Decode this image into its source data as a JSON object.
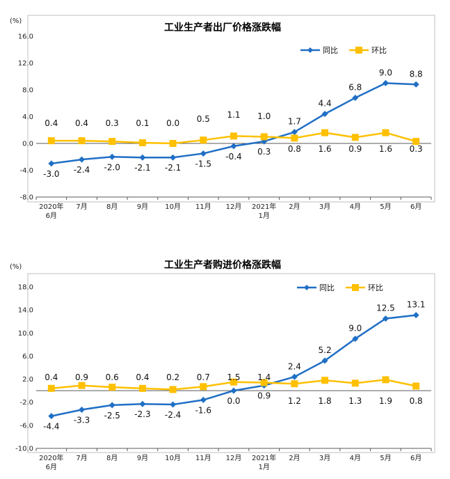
{
  "colors": {
    "yoy": "#1F6FC5",
    "mom": "#FFC000",
    "grid": "#d9d9d9",
    "axis": "#bfbfbf"
  },
  "chart_data": [
    {
      "type": "line",
      "title": "工业生产者出厂价格涨跌幅",
      "ylabel": "(%)",
      "ylim": [
        -8.0,
        16.0
      ],
      "yticks": [
        "16.0",
        "12.0",
        "8.0",
        "4.0",
        "0.0",
        "-4.0",
        "-8.0"
      ],
      "ytick_values": [
        16,
        12,
        8,
        4,
        0,
        -4,
        -8
      ],
      "categories": [
        "2020年6月",
        "7月",
        "8月",
        "9月",
        "10月",
        "11月",
        "12月",
        "2021年1月",
        "2月",
        "3月",
        "4月",
        "5月",
        "6月"
      ],
      "category_lines": [
        [
          "2020年",
          "6月"
        ],
        [
          "7月"
        ],
        [
          "8月"
        ],
        [
          "9月"
        ],
        [
          "10月"
        ],
        [
          "11月"
        ],
        [
          "12月"
        ],
        [
          "2021年",
          "1月"
        ],
        [
          "2月"
        ],
        [
          "3月"
        ],
        [
          "4月"
        ],
        [
          "5月"
        ],
        [
          "6月"
        ]
      ],
      "legend": [
        "同比",
        "环比"
      ],
      "series": [
        {
          "name": "同比",
          "values": [
            -3.0,
            -2.4,
            -2.0,
            -2.1,
            -2.1,
            -1.5,
            -0.4,
            0.3,
            1.7,
            4.4,
            6.8,
            9.0,
            8.8
          ],
          "labels": [
            "-3.0",
            "-2.4",
            "-2.0",
            "-2.1",
            "-2.1",
            "-1.5",
            "-0.4",
            "0.3",
            "1.7",
            "4.4",
            "6.8",
            "9.0",
            "8.8"
          ]
        },
        {
          "name": "环比",
          "values": [
            0.4,
            0.4,
            0.3,
            0.1,
            0.0,
            0.5,
            1.1,
            1.0,
            0.8,
            1.6,
            0.9,
            1.6,
            0.3
          ],
          "labels": [
            "0.4",
            "0.4",
            "0.3",
            "0.1",
            "0.0",
            "0.5",
            "1.1",
            "1.0",
            "0.8",
            "1.6",
            "0.9",
            "1.6",
            "0.3"
          ]
        }
      ]
    },
    {
      "type": "line",
      "title": "工业生产者购进价格涨跌幅",
      "ylabel": "(%)",
      "ylim": [
        -10.0,
        18.0
      ],
      "yticks": [
        "18.0",
        "14.0",
        "10.0",
        "6.0",
        "2.0",
        "-2.0",
        "-6.0",
        "-10.0"
      ],
      "ytick_values": [
        18,
        14,
        10,
        6,
        2,
        -2,
        -6,
        -10
      ],
      "categories": [
        "2020年6月",
        "7月",
        "8月",
        "9月",
        "10月",
        "11月",
        "12月",
        "2021年1月",
        "2月",
        "3月",
        "4月",
        "5月",
        "6月"
      ],
      "category_lines": [
        [
          "2020年",
          "6月"
        ],
        [
          "7月"
        ],
        [
          "8月"
        ],
        [
          "9月"
        ],
        [
          "10月"
        ],
        [
          "11月"
        ],
        [
          "12月"
        ],
        [
          "2021年",
          "1月"
        ],
        [
          "2月"
        ],
        [
          "3月"
        ],
        [
          "4月"
        ],
        [
          "5月"
        ],
        [
          "6月"
        ]
      ],
      "legend": [
        "同比",
        "环比"
      ],
      "series": [
        {
          "name": "同比",
          "values": [
            -4.4,
            -3.3,
            -2.5,
            -2.3,
            -2.4,
            -1.6,
            0.0,
            0.9,
            2.4,
            5.2,
            9.0,
            12.5,
            13.1
          ],
          "labels": [
            "-4.4",
            "-3.3",
            "-2.5",
            "-2.3",
            "-2.4",
            "-1.6",
            "0.0",
            "0.9",
            "2.4",
            "5.2",
            "9.0",
            "12.5",
            "13.1"
          ]
        },
        {
          "name": "环比",
          "values": [
            0.4,
            0.9,
            0.6,
            0.4,
            0.2,
            0.7,
            1.5,
            1.4,
            1.2,
            1.8,
            1.3,
            1.9,
            0.8
          ],
          "labels": [
            "0.4",
            "0.9",
            "0.6",
            "0.4",
            "0.2",
            "0.7",
            "1.5",
            "1.4",
            "1.2",
            "1.8",
            "1.3",
            "1.9",
            "0.8"
          ]
        }
      ]
    }
  ]
}
